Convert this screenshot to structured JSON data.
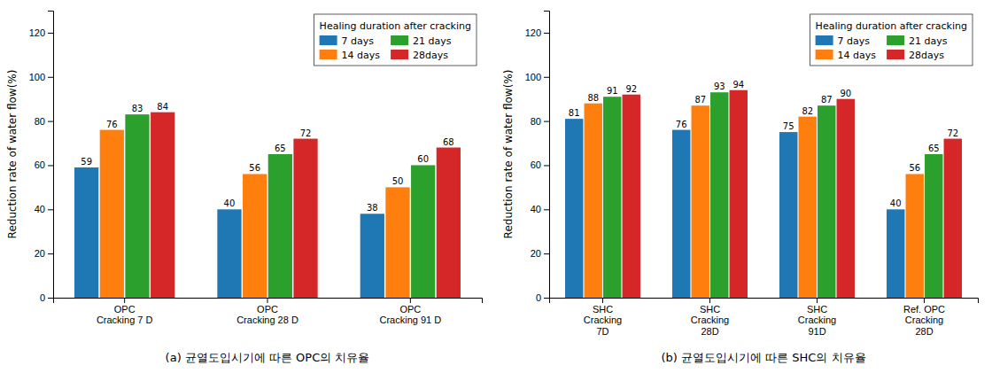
{
  "chart_data": [
    {
      "type": "bar",
      "subtitle": "(a) 균열도입시기에 따른 OPC의 치유율",
      "y_label": "Reduction rate of water flow(%)",
      "legend_title": "Healing duration after cracking",
      "legend": "upper right",
      "data_labels": true,
      "categories": [
        "OPC\nCracking 7 D",
        "OPC\nCracking 28 D",
        "OPC\nCracking 91 D"
      ],
      "series": [
        {
          "name": "7 days",
          "values": [
            59,
            40,
            38
          ]
        },
        {
          "name": "14 days",
          "values": [
            76,
            56,
            50
          ]
        },
        {
          "name": "21 days",
          "values": [
            83,
            65,
            60
          ]
        },
        {
          "name": "28days",
          "values": [
            84,
            72,
            68
          ]
        }
      ],
      "ylim": [
        0,
        130
      ],
      "yticks": [
        0,
        20,
        40,
        60,
        80,
        100,
        120
      ]
    },
    {
      "type": "bar",
      "subtitle": "(b) 균열도입시기에 따른 SHC의 치유율",
      "y_label": "Reduction rate of water flow(%)",
      "legend_title": "Healing duration after cracking",
      "legend": "upper right",
      "data_labels": true,
      "categories": [
        "SHC\nCracking\n7D",
        "SHC\nCracking\n28D",
        "SHC\nCracking\n91D",
        "Ref. OPC\nCracking\n28D"
      ],
      "series": [
        {
          "name": "7 days",
          "values": [
            81,
            76,
            75,
            40
          ]
        },
        {
          "name": "14 days",
          "values": [
            88,
            87,
            82,
            56
          ]
        },
        {
          "name": "21 days",
          "values": [
            91,
            93,
            87,
            65
          ]
        },
        {
          "name": "28days",
          "values": [
            92,
            94,
            90,
            72
          ]
        }
      ],
      "ylim": [
        0,
        130
      ],
      "yticks": [
        0,
        20,
        40,
        60,
        80,
        100,
        120
      ]
    }
  ]
}
